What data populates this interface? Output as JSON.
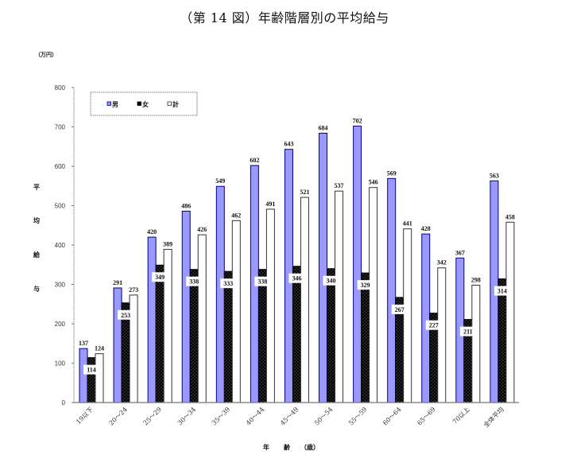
{
  "page": {
    "title": "（第 14 図）年齢階層別の平均給与",
    "unit": "（万円）",
    "y_axis_title_chars": [
      "平",
      "均",
      "給",
      "与"
    ],
    "x_axis_title_parts": [
      "年",
      "齢",
      "（歳）"
    ]
  },
  "legend": [
    {
      "label": "男",
      "color": "#9999ff",
      "stroke": "#000080"
    },
    {
      "label": "女",
      "color": "#000000",
      "stroke": "#000000"
    },
    {
      "label": "計",
      "color": "#ffffff",
      "stroke": "#333333"
    }
  ],
  "chart_data": {
    "type": "bar",
    "title": "（第 14 図）年齢階層別の平均給与",
    "xlabel": "年齢（歳）",
    "ylabel": "平均給与",
    "unit": "万円",
    "categories": [
      "19以下",
      "20～24",
      "25～29",
      "30～34",
      "35～39",
      "40～44",
      "45～49",
      "50～54",
      "55～59",
      "60～64",
      "65～69",
      "70以上",
      "全体平均"
    ],
    "series": [
      {
        "name": "男",
        "color": "#9999ff",
        "values": [
          137,
          291,
          420,
          486,
          549,
          602,
          643,
          684,
          702,
          569,
          428,
          367,
          563
        ]
      },
      {
        "name": "女",
        "color": "#000000",
        "values": [
          114,
          253,
          349,
          338,
          333,
          338,
          346,
          340,
          329,
          267,
          227,
          211,
          314
        ]
      },
      {
        "name": "計",
        "color": "#ffffff",
        "values": [
          124,
          273,
          389,
          426,
          462,
          491,
          521,
          537,
          546,
          441,
          342,
          298,
          458
        ]
      }
    ],
    "ylim": [
      0,
      800
    ],
    "yticks": [
      0,
      100,
      200,
      300,
      400,
      500,
      600,
      700,
      800
    ],
    "grid": false,
    "legend_position": "top-left, inside plot",
    "data_labels": true
  }
}
